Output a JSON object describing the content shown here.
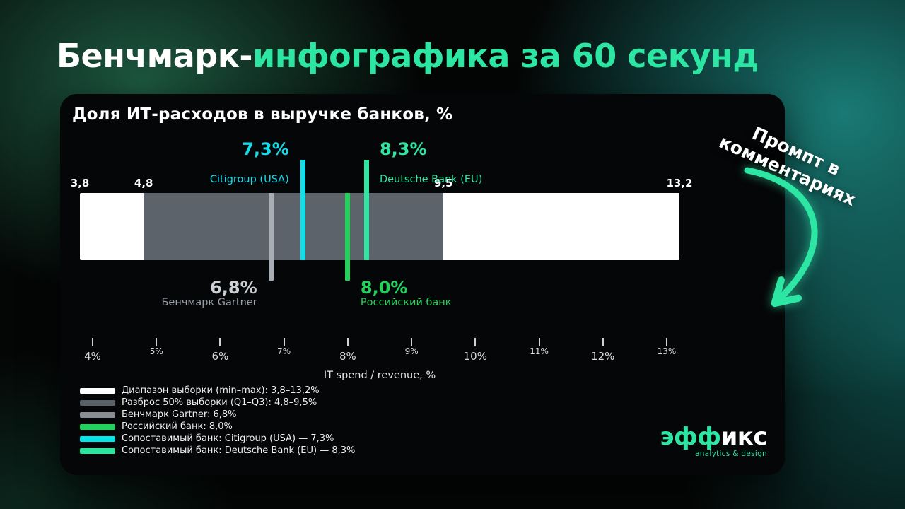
{
  "page": {
    "title_white": "Бенчмарк-",
    "title_accent": "инфографика за 60 секунд",
    "prompt_note_line1": "Промпт в",
    "prompt_note_line2": "комментариях"
  },
  "logo": {
    "accent": "эфф",
    "rest": "икс",
    "tagline": "analytics & design"
  },
  "colors": {
    "accent_spring": "#2ee6a4",
    "cyan": "#12dde9",
    "green": "#26d15b",
    "gray_marker": "#a9aeb4",
    "iqr_gray": "#5c636b",
    "range_white": "#ffffff",
    "panel_bg": "#050607",
    "teal_background": "#1a7d78"
  },
  "chart_data": {
    "type": "range-bar",
    "title": "Доля ИТ-расходов в выручке банков, %",
    "xlabel": "IT spend / revenue, %",
    "axis_min": 3.8,
    "axis_max": 13.2,
    "range": {
      "min": 3.8,
      "max": 13.2,
      "color": "#ffffff"
    },
    "iqr": {
      "q1": 4.8,
      "q3": 9.5,
      "color": "#5c636b"
    },
    "range_labels": [
      {
        "value": 3.8,
        "text": "3,8"
      },
      {
        "value": 4.8,
        "text": "4,8"
      },
      {
        "value": 9.5,
        "text": "9,5"
      },
      {
        "value": 13.2,
        "text": "13,2"
      }
    ],
    "markers": [
      {
        "value": 6.8,
        "label": "6,8%",
        "name": "Бенчмарк Gartner",
        "color": "#a9aeb4",
        "value_color": "#ccd0d4",
        "name_color": "#9aa0a6",
        "side": "below",
        "align": "left"
      },
      {
        "value": 7.3,
        "label": "7,3%",
        "name": "Citigroup (USA)",
        "color": "#12dde9",
        "value_color": "#12dde9",
        "name_color": "#12dde9",
        "side": "above",
        "align": "left"
      },
      {
        "value": 8.0,
        "label": "8,0%",
        "name": "Российский банк",
        "color": "#26d15b",
        "value_color": "#26d15b",
        "name_color": "#26d15b",
        "side": "below",
        "align": "right"
      },
      {
        "value": 8.3,
        "label": "8,3%",
        "name": "Deutsche Bank (EU)",
        "color": "#2ee6a1",
        "value_color": "#2ee6a1",
        "name_color": "#2ee6a1",
        "side": "above",
        "align": "right"
      }
    ],
    "ticks": [
      {
        "value": 4,
        "text": "4%"
      },
      {
        "value": 5,
        "text": "5%"
      },
      {
        "value": 6,
        "text": "6%"
      },
      {
        "value": 7,
        "text": "7%"
      },
      {
        "value": 8,
        "text": "8%"
      },
      {
        "value": 9,
        "text": "9%"
      },
      {
        "value": 10,
        "text": "10%"
      },
      {
        "value": 11,
        "text": "11%"
      },
      {
        "value": 12,
        "text": "12%"
      },
      {
        "value": 13,
        "text": "13%"
      }
    ],
    "legend": [
      {
        "color": "#ffffff",
        "label": "Диапазон выборки (min–max): 3,8–13,2%"
      },
      {
        "color": "#5b6168",
        "label": "Разброс 50% выборки (Q1–Q3): 4,8–9,5%"
      },
      {
        "color": "#888d93",
        "label": "Бенчмарк Gartner: 6,8%"
      },
      {
        "color": "#21d35e",
        "label": "Российский банк: 8,0%"
      },
      {
        "color": "#00e7e7",
        "label": "Сопоставимый банк: Citigroup (USA) — 7,3%"
      },
      {
        "color": "#2be49e",
        "label": "Сопоставимый банк: Deutsche Bank (EU) — 8,3%"
      }
    ]
  }
}
